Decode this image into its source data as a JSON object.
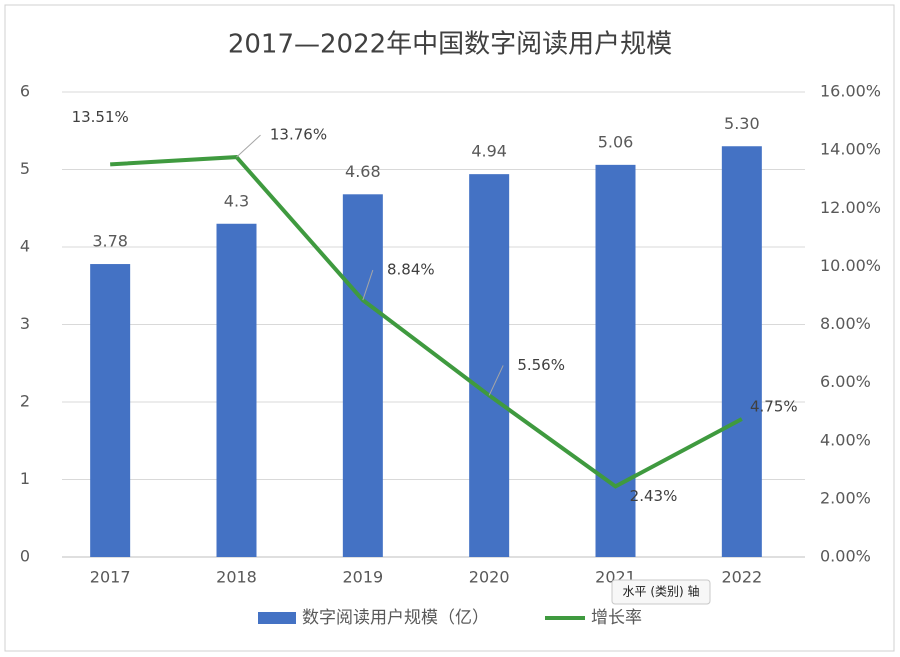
{
  "chart_data": {
    "type": "bar-line",
    "title": "2017—2022年中国数字阅读用户规模",
    "categories": [
      "2017",
      "2018",
      "2019",
      "2020",
      "2021",
      "2022"
    ],
    "series": [
      {
        "name": "数字阅读用户规模（亿）",
        "type": "bar",
        "color": "#4472c4",
        "values": [
          3.78,
          4.3,
          4.68,
          4.94,
          5.06,
          5.3
        ],
        "value_labels": [
          "3.78",
          "4.3",
          "4.68",
          "4.94",
          "5.06",
          "5.30"
        ]
      },
      {
        "name": "增长率",
        "type": "line",
        "axis": "y2",
        "color": "#3f9a3f",
        "values": [
          13.51,
          13.76,
          8.84,
          5.56,
          2.43,
          4.75
        ],
        "value_labels": [
          "13.51%",
          "13.76%",
          "8.84%",
          "5.56%",
          "2.43%",
          "4.75%"
        ]
      }
    ],
    "ylim": [
      0,
      6
    ],
    "yticks": [
      0,
      1,
      2,
      3,
      4,
      5,
      6
    ],
    "y2lim": [
      0,
      16
    ],
    "y2ticks": [
      {
        "value": 0,
        "label": "0.00%"
      },
      {
        "value": 2,
        "label": "2.00%"
      },
      {
        "value": 4,
        "label": "4.00%"
      },
      {
        "value": 6,
        "label": "6.00%"
      },
      {
        "value": 8,
        "label": "8.00%"
      },
      {
        "value": 10,
        "label": "10.00%"
      },
      {
        "value": 12,
        "label": "12.00%"
      },
      {
        "value": 14,
        "label": "14.00%"
      },
      {
        "value": 16,
        "label": "16.00%"
      }
    ],
    "grid": true,
    "legend": "bottom",
    "tooltip": "水平 (类别) 轴"
  }
}
